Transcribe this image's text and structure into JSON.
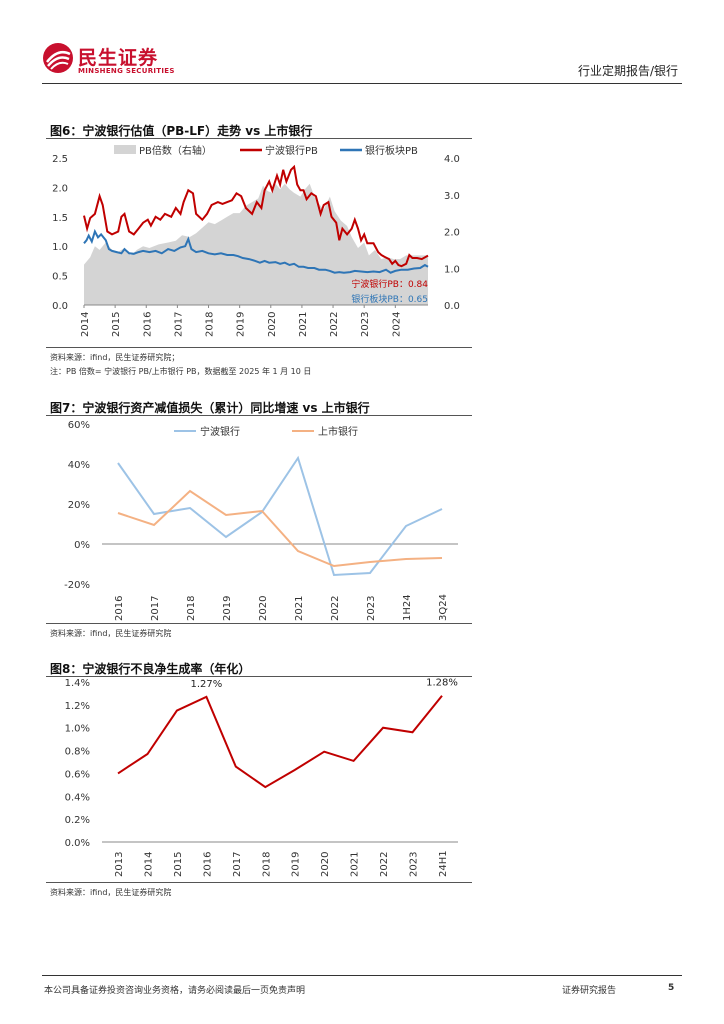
{
  "header": {
    "brand_cn": "民生证券",
    "brand_en": "MINSHENG SECURITIES",
    "category": "行业定期报告/银行"
  },
  "figure6": {
    "title": "图6：宁波银行估值（PB-LF）走势 vs 上市银行",
    "source": "资料来源：ifind，民生证券研究院；",
    "note": "注：PB 倍数=  宁波银行 PB/上市银行 PB，数据截至 2025 年 1 月 10 日",
    "annotations": {
      "nb": "宁波银行PB：0.84",
      "sector": "银行板块PB：0.65"
    },
    "chart_data": {
      "type": "line",
      "legend": [
        "PB倍数（右轴）",
        "宁波银行PB",
        "银行板块PB"
      ],
      "legend_position": "top",
      "x_labels": [
        "2014",
        "2015",
        "2016",
        "2017",
        "2018",
        "2019",
        "2020",
        "2021",
        "2022",
        "2023",
        "2024"
      ],
      "ylim_left": [
        0,
        2.5
      ],
      "yticks_left": [
        "0.0",
        "0.5",
        "1.0",
        "1.5",
        "2.0",
        "2.5"
      ],
      "ylim_right": [
        0,
        4.0
      ],
      "yticks_right": [
        "0.0",
        "1.0",
        "2.0",
        "3.0",
        "4.0"
      ],
      "x_range": [
        2014.0,
        2025.05
      ],
      "series": [
        {
          "name": "PB倍数（右轴）",
          "type": "area",
          "axis": "right",
          "color": "#d4d4d4",
          "points": [
            [
              2014.0,
              1.1
            ],
            [
              2014.2,
              1.3
            ],
            [
              2014.35,
              1.6
            ],
            [
              2014.5,
              1.5
            ],
            [
              2014.7,
              1.7
            ],
            [
              2014.9,
              1.5
            ],
            [
              2015.1,
              1.45
            ],
            [
              2015.3,
              1.55
            ],
            [
              2015.5,
              1.35
            ],
            [
              2015.7,
              1.5
            ],
            [
              2015.9,
              1.6
            ],
            [
              2016.1,
              1.55
            ],
            [
              2016.4,
              1.65
            ],
            [
              2016.7,
              1.7
            ],
            [
              2016.95,
              1.75
            ],
            [
              2017.15,
              1.9
            ],
            [
              2017.4,
              1.85
            ],
            [
              2017.6,
              1.95
            ],
            [
              2017.8,
              2.1
            ],
            [
              2018.0,
              2.25
            ],
            [
              2018.2,
              2.2
            ],
            [
              2018.4,
              2.3
            ],
            [
              2018.6,
              2.4
            ],
            [
              2018.8,
              2.5
            ],
            [
              2019.0,
              2.5
            ],
            [
              2019.2,
              2.7
            ],
            [
              2019.4,
              2.8
            ],
            [
              2019.6,
              2.9
            ],
            [
              2019.75,
              3.25
            ],
            [
              2019.9,
              3.1
            ],
            [
              2020.05,
              3.05
            ],
            [
              2020.15,
              3.3
            ],
            [
              2020.3,
              3.15
            ],
            [
              2020.45,
              3.3
            ],
            [
              2020.6,
              3.15
            ],
            [
              2020.75,
              3.05
            ],
            [
              2020.95,
              2.95
            ],
            [
              2021.1,
              3.15
            ],
            [
              2021.25,
              3.3
            ],
            [
              2021.4,
              2.95
            ],
            [
              2021.55,
              2.75
            ],
            [
              2021.7,
              2.6
            ],
            [
              2021.9,
              2.95
            ],
            [
              2022.05,
              2.55
            ],
            [
              2022.25,
              2.3
            ],
            [
              2022.45,
              2.15
            ],
            [
              2022.6,
              1.85
            ],
            [
              2022.8,
              1.55
            ],
            [
              2023.0,
              1.7
            ],
            [
              2023.15,
              1.35
            ],
            [
              2023.35,
              1.5
            ],
            [
              2023.55,
              1.25
            ],
            [
              2023.75,
              1.3
            ],
            [
              2023.95,
              1.25
            ],
            [
              2024.15,
              1.25
            ],
            [
              2024.35,
              1.35
            ],
            [
              2024.6,
              1.35
            ],
            [
              2024.8,
              1.35
            ],
            [
              2025.05,
              1.35
            ]
          ]
        },
        {
          "name": "宁波银行PB",
          "type": "line",
          "axis": "left",
          "color": "#c00000",
          "points": [
            [
              2014.0,
              1.52
            ],
            [
              2014.1,
              1.3
            ],
            [
              2014.2,
              1.48
            ],
            [
              2014.35,
              1.55
            ],
            [
              2014.5,
              1.85
            ],
            [
              2014.6,
              1.7
            ],
            [
              2014.75,
              1.25
            ],
            [
              2014.9,
              1.2
            ],
            [
              2015.1,
              1.25
            ],
            [
              2015.2,
              1.5
            ],
            [
              2015.3,
              1.55
            ],
            [
              2015.45,
              1.25
            ],
            [
              2015.6,
              1.2
            ],
            [
              2015.75,
              1.3
            ],
            [
              2015.9,
              1.4
            ],
            [
              2016.05,
              1.45
            ],
            [
              2016.15,
              1.35
            ],
            [
              2016.3,
              1.5
            ],
            [
              2016.45,
              1.45
            ],
            [
              2016.6,
              1.55
            ],
            [
              2016.8,
              1.5
            ],
            [
              2016.95,
              1.65
            ],
            [
              2017.1,
              1.55
            ],
            [
              2017.2,
              1.75
            ],
            [
              2017.35,
              1.95
            ],
            [
              2017.5,
              1.9
            ],
            [
              2017.6,
              1.55
            ],
            [
              2017.8,
              1.45
            ],
            [
              2017.95,
              1.55
            ],
            [
              2018.1,
              1.7
            ],
            [
              2018.3,
              1.75
            ],
            [
              2018.45,
              1.72
            ],
            [
              2018.6,
              1.75
            ],
            [
              2018.75,
              1.78
            ],
            [
              2018.9,
              1.9
            ],
            [
              2019.05,
              1.85
            ],
            [
              2019.2,
              1.65
            ],
            [
              2019.4,
              1.55
            ],
            [
              2019.55,
              1.75
            ],
            [
              2019.7,
              1.65
            ],
            [
              2019.8,
              1.95
            ],
            [
              2019.95,
              2.1
            ],
            [
              2020.05,
              1.95
            ],
            [
              2020.2,
              2.2
            ],
            [
              2020.3,
              2.05
            ],
            [
              2020.4,
              2.3
            ],
            [
              2020.5,
              2.1
            ],
            [
              2020.65,
              2.3
            ],
            [
              2020.75,
              2.35
            ],
            [
              2020.85,
              2.05
            ],
            [
              2020.95,
              1.95
            ],
            [
              2021.05,
              1.95
            ],
            [
              2021.15,
              1.8
            ],
            [
              2021.3,
              1.9
            ],
            [
              2021.45,
              1.85
            ],
            [
              2021.6,
              1.55
            ],
            [
              2021.7,
              1.7
            ],
            [
              2021.85,
              1.75
            ],
            [
              2021.95,
              1.5
            ],
            [
              2022.1,
              1.4
            ],
            [
              2022.2,
              1.1
            ],
            [
              2022.3,
              1.3
            ],
            [
              2022.45,
              1.2
            ],
            [
              2022.6,
              1.3
            ],
            [
              2022.7,
              1.45
            ],
            [
              2022.8,
              1.3
            ],
            [
              2022.9,
              1.1
            ],
            [
              2023.0,
              1.2
            ],
            [
              2023.1,
              1.05
            ],
            [
              2023.3,
              1.05
            ],
            [
              2023.45,
              0.9
            ],
            [
              2023.55,
              0.85
            ],
            [
              2023.65,
              0.82
            ],
            [
              2023.8,
              0.78
            ],
            [
              2023.9,
              0.7
            ],
            [
              2024.0,
              0.75
            ],
            [
              2024.1,
              0.68
            ],
            [
              2024.2,
              0.66
            ],
            [
              2024.35,
              0.7
            ],
            [
              2024.45,
              0.85
            ],
            [
              2024.55,
              0.8
            ],
            [
              2024.7,
              0.8
            ],
            [
              2024.85,
              0.78
            ],
            [
              2025.05,
              0.84
            ]
          ]
        },
        {
          "name": "银行板块PB",
          "type": "line",
          "axis": "left",
          "color": "#2e75b6",
          "points": [
            [
              2014.0,
              1.05
            ],
            [
              2014.08,
              1.1
            ],
            [
              2014.15,
              1.18
            ],
            [
              2014.25,
              1.08
            ],
            [
              2014.35,
              1.25
            ],
            [
              2014.45,
              1.15
            ],
            [
              2014.55,
              1.2
            ],
            [
              2014.7,
              1.1
            ],
            [
              2014.8,
              0.95
            ],
            [
              2014.9,
              0.92
            ],
            [
              2015.05,
              0.9
            ],
            [
              2015.2,
              0.88
            ],
            [
              2015.3,
              0.95
            ],
            [
              2015.45,
              0.88
            ],
            [
              2015.6,
              0.87
            ],
            [
              2015.75,
              0.9
            ],
            [
              2015.9,
              0.92
            ],
            [
              2016.1,
              0.9
            ],
            [
              2016.3,
              0.92
            ],
            [
              2016.5,
              0.88
            ],
            [
              2016.7,
              0.95
            ],
            [
              2016.9,
              0.92
            ],
            [
              2017.1,
              0.98
            ],
            [
              2017.25,
              1.0
            ],
            [
              2017.35,
              1.12
            ],
            [
              2017.45,
              0.95
            ],
            [
              2017.6,
              0.9
            ],
            [
              2017.8,
              0.92
            ],
            [
              2018.0,
              0.88
            ],
            [
              2018.2,
              0.86
            ],
            [
              2018.4,
              0.88
            ],
            [
              2018.6,
              0.85
            ],
            [
              2018.8,
              0.85
            ],
            [
              2018.95,
              0.83
            ],
            [
              2019.1,
              0.8
            ],
            [
              2019.3,
              0.78
            ],
            [
              2019.5,
              0.75
            ],
            [
              2019.65,
              0.72
            ],
            [
              2019.8,
              0.75
            ],
            [
              2019.95,
              0.72
            ],
            [
              2020.15,
              0.73
            ],
            [
              2020.3,
              0.7
            ],
            [
              2020.45,
              0.72
            ],
            [
              2020.6,
              0.68
            ],
            [
              2020.75,
              0.7
            ],
            [
              2020.9,
              0.65
            ],
            [
              2021.05,
              0.65
            ],
            [
              2021.2,
              0.63
            ],
            [
              2021.4,
              0.63
            ],
            [
              2021.55,
              0.6
            ],
            [
              2021.75,
              0.6
            ],
            [
              2021.9,
              0.58
            ],
            [
              2022.05,
              0.55
            ],
            [
              2022.2,
              0.56
            ],
            [
              2022.35,
              0.55
            ],
            [
              2022.55,
              0.56
            ],
            [
              2022.7,
              0.58
            ],
            [
              2022.9,
              0.57
            ],
            [
              2023.1,
              0.56
            ],
            [
              2023.3,
              0.57
            ],
            [
              2023.5,
              0.56
            ],
            [
              2023.7,
              0.6
            ],
            [
              2023.85,
              0.55
            ],
            [
              2024.0,
              0.58
            ],
            [
              2024.2,
              0.6
            ],
            [
              2024.4,
              0.6
            ],
            [
              2024.6,
              0.62
            ],
            [
              2024.8,
              0.63
            ],
            [
              2024.95,
              0.68
            ],
            [
              2025.05,
              0.65
            ]
          ]
        }
      ]
    }
  },
  "figure7": {
    "title": "图7：宁波银行资产减值损失（累计）同比增速 vs 上市银行",
    "source": "资料来源：ifind，民生证券研究院",
    "chart_data": {
      "type": "line",
      "categories": [
        "2016",
        "2017",
        "2018",
        "2019",
        "2020",
        "2021",
        "2022",
        "2023",
        "1H24",
        "3Q24"
      ],
      "yticks": [
        "60%",
        "40%",
        "20%",
        "0%",
        "-20%"
      ],
      "ylim": [
        -20,
        60
      ],
      "legend_position": "top",
      "series": [
        {
          "name": "宁波银行",
          "color": "#9dc3e6",
          "values": [
            40.5,
            15,
            18,
            3.5,
            16,
            43,
            -15.5,
            -14.5,
            9,
            17.5
          ]
        },
        {
          "name": "上市银行",
          "color": "#f4b183",
          "values": [
            15.5,
            9.5,
            26.5,
            14.5,
            16.5,
            -3.5,
            -11,
            -9,
            -7.5,
            -7
          ]
        }
      ]
    }
  },
  "figure8": {
    "title": "图8：宁波银行不良净生成率（年化）",
    "source": "资料来源：ifind，民生证券研究院",
    "chart_data": {
      "type": "line",
      "categories": [
        "2013",
        "2014",
        "2015",
        "2016",
        "2017",
        "2018",
        "2019",
        "2020",
        "2021",
        "2022",
        "2023",
        "24H1"
      ],
      "yticks": [
        "1.4%",
        "1.2%",
        "1.0%",
        "0.8%",
        "0.6%",
        "0.4%",
        "0.2%",
        "0.0%"
      ],
      "ylim": [
        0,
        1.4
      ],
      "series": [
        {
          "color": "#c00000",
          "values": [
            0.6,
            0.77,
            1.15,
            1.27,
            0.66,
            0.48,
            0.63,
            0.79,
            0.71,
            1.0,
            0.96,
            1.28
          ]
        }
      ],
      "data_labels": [
        {
          "index": 3,
          "text": "1.27%"
        },
        {
          "index": 11,
          "text": "1.28%"
        }
      ]
    }
  },
  "footer": {
    "disclaimer": "本公司具备证券投资咨询业务资格，请务必阅读最后一页免责声明",
    "report_type": "证券研究报告",
    "page_number": "5"
  }
}
